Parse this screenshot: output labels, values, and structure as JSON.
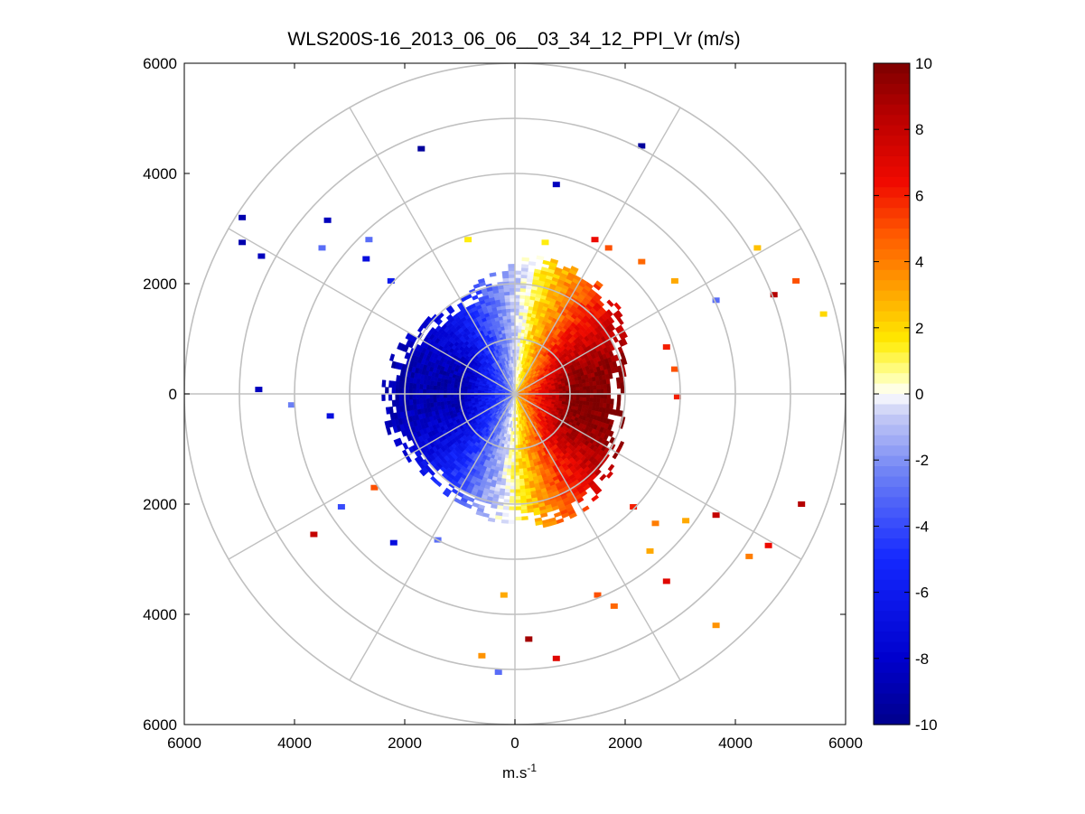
{
  "figure": {
    "background": "#ffffff",
    "grid_color": "#c0c0c0",
    "axes_color": "#000000"
  },
  "chart_data": {
    "type": "heatmap",
    "subtype": "polar-ppi",
    "title": "WLS200S-16_2013_06_06__03_34_12_PPI_Vr (m/s)",
    "xlabel": "m.s",
    "xlabel_superscript": "-1",
    "xlim": [
      -6000,
      6000
    ],
    "ylim": [
      -6000,
      6000
    ],
    "x_ticks": [
      -6000,
      -4000,
      -2000,
      0,
      2000,
      4000,
      6000
    ],
    "x_tick_labels": [
      "6000",
      "4000",
      "2000",
      "0",
      "2000",
      "4000",
      "6000"
    ],
    "y_ticks": [
      6000,
      4000,
      2000,
      0,
      -2000,
      -4000,
      -6000
    ],
    "y_tick_labels": [
      "6000",
      "4000",
      "2000",
      "0",
      "2000",
      "4000",
      "6000"
    ],
    "grid": true,
    "polar_grid": {
      "rings": [
        1000,
        2000,
        3000,
        4000,
        5000,
        6000
      ],
      "spoke_angles_deg": [
        0,
        30,
        60,
        90,
        120,
        150,
        180,
        210,
        240,
        270,
        300,
        330
      ]
    },
    "colorbar": {
      "min": -10,
      "max": 10,
      "ticks": [
        10,
        8,
        6,
        4,
        2,
        0,
        -2,
        -4,
        -6,
        -8,
        -10
      ],
      "tick_labels": [
        "10",
        "8",
        "6",
        "4",
        "2",
        "0",
        "-2",
        "-4",
        "-6",
        "-8",
        "-10"
      ],
      "levels": 64,
      "colormap": "blue-white-yellow-red"
    },
    "scan": {
      "dense_range_max": 2200,
      "approach_peak": -9,
      "recede_peak": 10,
      "zero_bearing_deg": 5,
      "rim_bearing_north_deg": 5,
      "rim_bearing_south_deg": 200
    },
    "sparse_cells": [
      {
        "x": -1700,
        "y": 4450,
        "v": -9.5
      },
      {
        "x": 2300,
        "y": 4500,
        "v": -9.5
      },
      {
        "x": 750,
        "y": 3800,
        "v": -8.5
      },
      {
        "x": -4950,
        "y": 3200,
        "v": -9
      },
      {
        "x": -4950,
        "y": 2750,
        "v": -9
      },
      {
        "x": -4600,
        "y": 2500,
        "v": -8.5
      },
      {
        "x": -3400,
        "y": 3150,
        "v": -8.5
      },
      {
        "x": -3500,
        "y": 2650,
        "v": -3
      },
      {
        "x": -2650,
        "y": 2800,
        "v": -3
      },
      {
        "x": -2700,
        "y": 2450,
        "v": -7
      },
      {
        "x": -2250,
        "y": 2050,
        "v": -6
      },
      {
        "x": -4650,
        "y": 80,
        "v": -8.5
      },
      {
        "x": -4050,
        "y": -200,
        "v": -2.5
      },
      {
        "x": -3350,
        "y": -400,
        "v": -7
      },
      {
        "x": -3150,
        "y": -2050,
        "v": -4
      },
      {
        "x": -2550,
        "y": -1700,
        "v": 5
      },
      {
        "x": -3650,
        "y": -2550,
        "v": 8
      },
      {
        "x": -2200,
        "y": -2700,
        "v": -7
      },
      {
        "x": -1400,
        "y": -2650,
        "v": -3
      },
      {
        "x": -200,
        "y": -3650,
        "v": 3
      },
      {
        "x": -600,
        "y": -4750,
        "v": 3.5
      },
      {
        "x": -300,
        "y": -5050,
        "v": -3
      },
      {
        "x": 250,
        "y": -4450,
        "v": 9
      },
      {
        "x": 750,
        "y": -4800,
        "v": 7
      },
      {
        "x": 1500,
        "y": -3650,
        "v": 5
      },
      {
        "x": 1800,
        "y": -3850,
        "v": 4.5
      },
      {
        "x": 2750,
        "y": -3400,
        "v": 7
      },
      {
        "x": 2450,
        "y": -2850,
        "v": 3
      },
      {
        "x": 3100,
        "y": -2300,
        "v": 3
      },
      {
        "x": 2150,
        "y": -2050,
        "v": 6
      },
      {
        "x": 2550,
        "y": -2350,
        "v": 4
      },
      {
        "x": 3650,
        "y": -2200,
        "v": 8
      },
      {
        "x": 3650,
        "y": -4200,
        "v": 3.5
      },
      {
        "x": 4250,
        "y": -2950,
        "v": 4
      },
      {
        "x": 4600,
        "y": -2750,
        "v": 6.5
      },
      {
        "x": 5200,
        "y": -2000,
        "v": 8.5
      },
      {
        "x": 4400,
        "y": 2650,
        "v": 2.5
      },
      {
        "x": 4700,
        "y": 1800,
        "v": 8.5
      },
      {
        "x": 5100,
        "y": 2050,
        "v": 5
      },
      {
        "x": 5600,
        "y": 1450,
        "v": 2
      },
      {
        "x": 3650,
        "y": 1700,
        "v": -3
      },
      {
        "x": 2900,
        "y": 2050,
        "v": 3
      },
      {
        "x": 2300,
        "y": 2400,
        "v": 4.5
      },
      {
        "x": 1700,
        "y": 2650,
        "v": 5
      },
      {
        "x": 1450,
        "y": 2800,
        "v": 6.5
      },
      {
        "x": 550,
        "y": 2750,
        "v": 1.5
      },
      {
        "x": -850,
        "y": 2800,
        "v": 1.5
      },
      {
        "x": 2750,
        "y": 850,
        "v": 6
      },
      {
        "x": 2900,
        "y": 450,
        "v": 5
      },
      {
        "x": 2950,
        "y": -50,
        "v": 6
      }
    ]
  }
}
